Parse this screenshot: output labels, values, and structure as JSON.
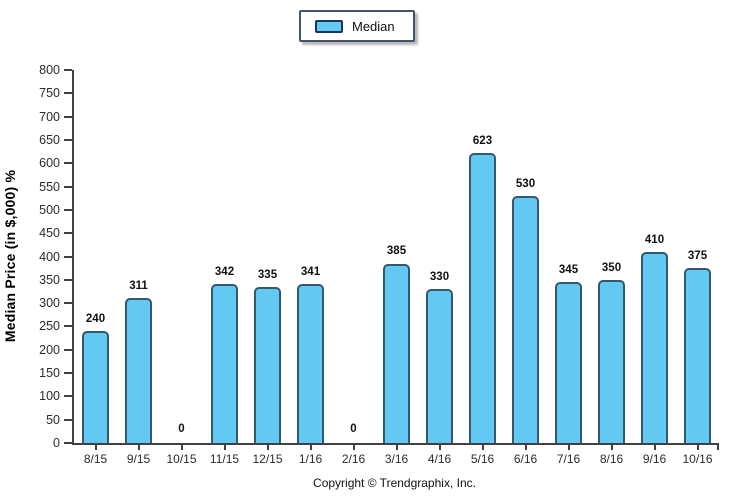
{
  "legend": {
    "label": "Median"
  },
  "footer": {
    "copyright": "Copyright © Trendgraphix, Inc."
  },
  "chart_data": {
    "type": "bar",
    "title": "",
    "categories": [
      "8/15",
      "9/15",
      "10/15",
      "11/15",
      "12/15",
      "1/16",
      "2/16",
      "3/16",
      "4/16",
      "5/16",
      "6/16",
      "7/16",
      "8/16",
      "9/16",
      "10/16"
    ],
    "series": [
      {
        "name": "Median",
        "values": [
          240,
          311,
          0,
          342,
          335,
          341,
          0,
          385,
          330,
          623,
          530,
          345,
          350,
          410,
          375
        ]
      }
    ],
    "xlabel": "",
    "ylabel": "Median Price (in $,000) %",
    "ylim": [
      0,
      800
    ],
    "ytick_step": 50,
    "grid": false,
    "legend_position": "top-center",
    "value_labels": true,
    "colors": {
      "bar_fill": "#63C9F2",
      "bar_border": "#33596C",
      "axis": "#404040",
      "text": "#1A1A1A",
      "legend_border": "#44546A"
    }
  }
}
